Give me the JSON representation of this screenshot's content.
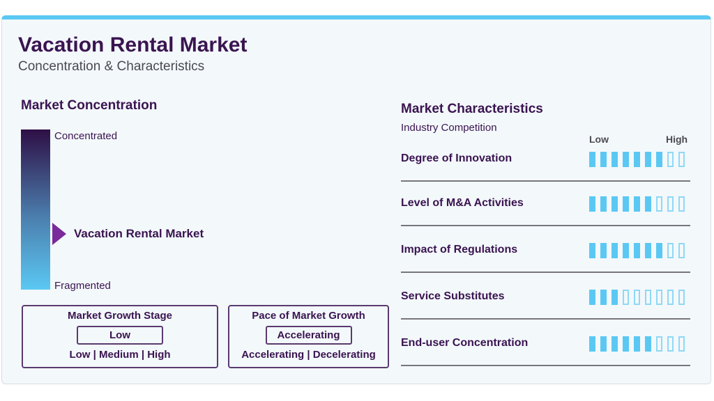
{
  "header": {
    "title": "Vacation Rental Market",
    "subtitle": "Concentration & Characteristics"
  },
  "concentration": {
    "heading": "Market Concentration",
    "top_label": "Concentrated",
    "bottom_label": "Fragmented",
    "marker_label": "Vacation Rental Market",
    "gradient_colors": [
      "#2e0f45",
      "#5bc8f3"
    ],
    "marker_color": "#7a2a9a"
  },
  "growth_stage": {
    "title": "Market Growth Stage",
    "value": "Low",
    "options": "Low | Medium | High"
  },
  "growth_pace": {
    "title": "Pace of Market Growth",
    "value": "Accelerating",
    "options": "Accelerating | Decelerating"
  },
  "characteristics": {
    "heading": "Market Characteristics",
    "subheading": "Industry Competition",
    "low_label": "Low",
    "high_label": "High",
    "scale_max": 9,
    "bar_color": "#5bc8f3",
    "items": [
      {
        "label": "Degree of Innovation",
        "rating": 7
      },
      {
        "label": "Level of M&A Activities",
        "rating": 6
      },
      {
        "label": "Impact of Regulations",
        "rating": 7
      },
      {
        "label": "Service Substitutes",
        "rating": 3
      },
      {
        "label": "End-user Concentration",
        "rating": 6
      }
    ]
  }
}
